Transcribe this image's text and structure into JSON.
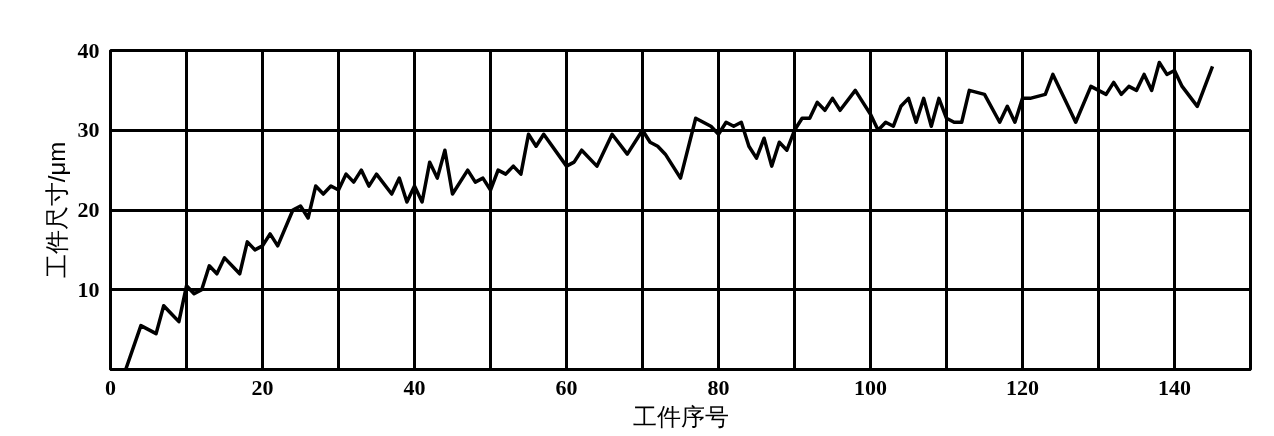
{
  "chart_data": {
    "type": "line",
    "xlabel": "工件序号",
    "ylabel": "工件尺寸/μm",
    "xlim": [
      0,
      150
    ],
    "ylim": [
      0,
      40
    ],
    "xticks": [
      0,
      {
        "value": 10,
        "label": null
      },
      20,
      {
        "value": 30,
        "label": null
      },
      40,
      {
        "value": 50,
        "label": null
      },
      60,
      {
        "value": 70,
        "label": null
      },
      80,
      {
        "value": 90,
        "label": null
      },
      100,
      {
        "value": 110,
        "label": null
      },
      120,
      {
        "value": 130,
        "label": null
      },
      140
    ],
    "yticks": [
      10,
      20,
      30,
      40
    ],
    "grid": true,
    "marker": "none",
    "line_style": "solid",
    "series": [
      {
        "color": "#000000",
        "x": [
          2,
          4,
          5,
          6,
          7,
          8,
          9,
          10,
          11,
          12,
          13,
          14,
          15,
          17,
          18,
          19,
          20,
          21,
          22,
          24,
          25,
          26,
          27,
          28,
          29,
          30,
          31,
          32,
          33,
          34,
          35,
          37,
          38,
          39,
          40,
          41,
          42,
          43,
          44,
          45,
          47,
          48,
          49,
          50,
          51,
          52,
          53,
          54,
          55,
          56,
          57,
          60,
          61,
          62,
          64,
          66,
          68,
          70,
          71,
          72,
          73,
          75,
          77,
          79,
          80,
          81,
          82,
          83,
          84,
          85,
          86,
          87,
          88,
          89,
          90,
          91,
          92,
          93,
          94,
          95,
          96,
          98,
          99,
          100,
          101,
          102,
          103,
          104,
          105,
          106,
          107,
          108,
          109,
          110,
          111,
          112,
          113,
          115,
          117,
          118,
          119,
          120,
          121,
          123,
          124,
          126,
          127,
          129,
          131,
          132,
          133,
          134,
          135,
          136,
          137,
          138,
          139,
          140,
          141,
          143,
          145
        ],
        "values": [
          0,
          5.5,
          5,
          4.5,
          8,
          7,
          6,
          10.5,
          9.5,
          10,
          13,
          12,
          14,
          12,
          16,
          15,
          15.5,
          17,
          15.5,
          20,
          20.5,
          19,
          23,
          22,
          23,
          22.5,
          24.5,
          23.5,
          25,
          23,
          24.5,
          22,
          24,
          21,
          23,
          21,
          26,
          24,
          27.5,
          22,
          25,
          23.5,
          24,
          22.5,
          25,
          24.5,
          25.5,
          24.5,
          29.5,
          28,
          29.5,
          25.5,
          26,
          27.5,
          25.5,
          29.5,
          27,
          30,
          28.5,
          28,
          27,
          24,
          31.5,
          30.5,
          29.5,
          31,
          30.5,
          31,
          28,
          26.5,
          29,
          25.5,
          28.5,
          27.5,
          30,
          31.5,
          31.5,
          33.5,
          32.5,
          34,
          32.5,
          35,
          33.5,
          32,
          30,
          31,
          30.5,
          33,
          34,
          31,
          34,
          30.5,
          34,
          31.5,
          31,
          31,
          35,
          34.5,
          31,
          33,
          31,
          34,
          34,
          34.5,
          37,
          33,
          31,
          35.5,
          34.5,
          36,
          34.5,
          35.5,
          35,
          37,
          35,
          38.5,
          37,
          37.5,
          35.5,
          33,
          38
        ]
      }
    ]
  }
}
